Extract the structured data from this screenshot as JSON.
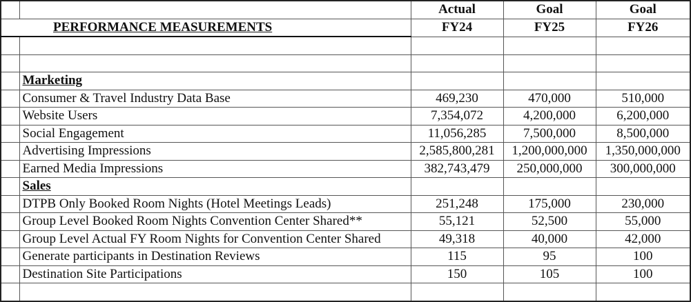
{
  "header": {
    "title": "PERFORMANCE MEASUREMENTS",
    "columns": [
      {
        "top": "Actual",
        "bottom": "FY24"
      },
      {
        "top": "Goal",
        "bottom": "FY25"
      },
      {
        "top": "Goal",
        "bottom": "FY26"
      }
    ]
  },
  "sections": [
    {
      "name": "Marketing",
      "rows": [
        {
          "label": "Consumer & Travel Industry Data Base",
          "values": [
            "469,230",
            "470,000",
            "510,000"
          ]
        },
        {
          "label": "Website Users",
          "values": [
            "7,354,072",
            "4,200,000",
            "6,200,000"
          ]
        },
        {
          "label": "Social Engagement",
          "values": [
            "11,056,285",
            "7,500,000",
            "8,500,000"
          ]
        },
        {
          "label": "Advertising Impressions",
          "values": [
            "2,585,800,281",
            "1,200,000,000",
            "1,350,000,000"
          ]
        },
        {
          "label": "Earned Media Impressions",
          "values": [
            "382,743,479",
            "250,000,000",
            "300,000,000"
          ]
        }
      ]
    },
    {
      "name": "Sales",
      "rows": [
        {
          "label": "DTPB Only Booked Room Nights (Hotel Meetings Leads)",
          "values": [
            "251,248",
            "175,000",
            "230,000"
          ]
        },
        {
          "label": "Group Level Booked Room Nights Convention Center Shared**",
          "values": [
            "55,121",
            "52,500",
            "55,000"
          ]
        },
        {
          "label": "Group Level Actual FY Room Nights for Convention Center Shared",
          "values": [
            "49,318",
            "40,000",
            "42,000"
          ]
        },
        {
          "label": "Generate participants in Destination Reviews",
          "values": [
            "115",
            "95",
            "100"
          ]
        },
        {
          "label": "Destination Site Participations",
          "values": [
            "150",
            "105",
            "100"
          ]
        }
      ]
    }
  ]
}
